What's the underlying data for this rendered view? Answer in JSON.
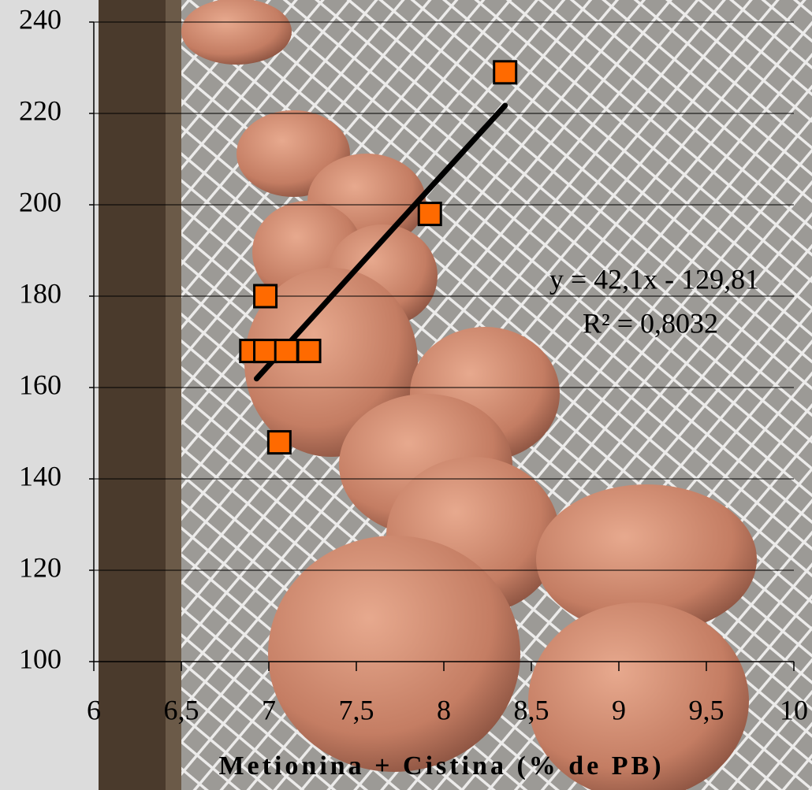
{
  "chart_data": {
    "type": "scatter",
    "x_label": "Metionina + Cistina (% de PB)",
    "x": [
      8.35,
      7.92,
      6.98,
      6.9,
      6.98,
      7.1,
      7.23,
      7.06
    ],
    "values": [
      229,
      198,
      180,
      168,
      168,
      168,
      168,
      148
    ],
    "color": "#ff6a00",
    "trendline": {
      "slope": 42.1,
      "intercept": -129.81,
      "x": [
        6.93,
        8.35
      ],
      "color": "#000000"
    },
    "annotations": [
      "y = 42,1x - 129,81",
      "R² = 0,8032"
    ],
    "xlim": [
      6,
      10
    ],
    "xticks": [
      6,
      {
        "value": 6.5,
        "label": "6,5"
      },
      7,
      {
        "value": 7.5,
        "label": "7,5"
      },
      8,
      {
        "value": 8.5,
        "label": "8,5"
      },
      9,
      {
        "value": 9.5,
        "label": "9,5"
      },
      10
    ],
    "ylim": [
      100,
      240
    ],
    "yticks": [
      100,
      120,
      140,
      160,
      180,
      200,
      220,
      240
    ],
    "grid": true
  }
}
